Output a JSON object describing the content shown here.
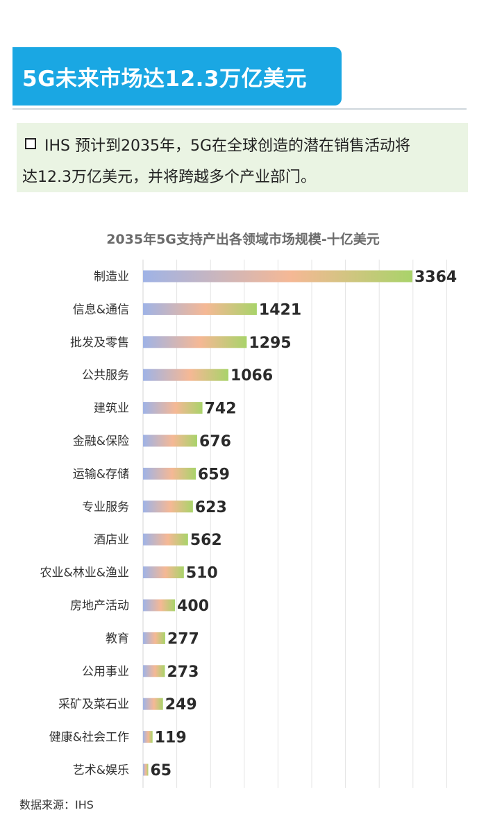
{
  "header": {
    "title": "5G未来市场达12.3万亿美元"
  },
  "note": {
    "bullet_icon": "square-bullet-icon",
    "line1": "IHS 预计到2035年，5G在全球创造的潜在销售活动将",
    "line2": "达12.3万亿美元，并将跨越多个产业部门。"
  },
  "chart_data": {
    "type": "bar",
    "orientation": "horizontal",
    "title": "2035年5G支持产出各领域市场规模-十亿美元",
    "categories": [
      "制造业",
      "信息&通信",
      "批发及零售",
      "公共服务",
      "建筑业",
      "金融&保险",
      "运输&存储",
      "专业服务",
      "酒店业",
      "农业&林业&渔业",
      "房地产活动",
      "教育",
      "公用事业",
      "采矿及菜石业",
      "健康&社会工作",
      "艺术&娱乐"
    ],
    "values": [
      3364,
      1421,
      1295,
      1066,
      742,
      676,
      659,
      623,
      562,
      510,
      400,
      277,
      273,
      249,
      119,
      65
    ],
    "xlim": [
      0,
      3364
    ],
    "grid": true,
    "data_labels": true,
    "bar_gradient": [
      "#9fb3e6",
      "#f5b895",
      "#a9d36a"
    ],
    "gridline_color": "#e4e4e4"
  },
  "footer": {
    "source": "数据来源：IHS"
  }
}
